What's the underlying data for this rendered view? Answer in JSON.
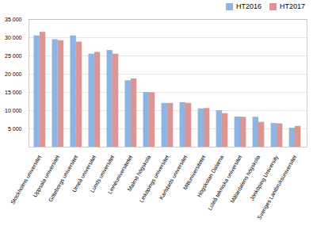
{
  "chart_data": {
    "type": "bar",
    "categories": [
      "Stockholms universitet",
      "Uppsala universitet",
      "Göteborgs universitet",
      "Umeå universitet",
      "Lunds universitet",
      "Linnéuniversitetet",
      "Malmö högskola",
      "Linköpings universitet",
      "Karlstads universitet",
      "Mittuniversitetet",
      "Högskolan Dalarna",
      "Luleå tekniska universitet",
      "Mälardalens högskola",
      "Jönköping University",
      "Sveriges Lantbruksuniversitet"
    ],
    "series": [
      {
        "name": "HT2016",
        "color": "#8EB4E3",
        "values": [
          30500,
          29500,
          30500,
          25500,
          26500,
          18200,
          15000,
          12000,
          12200,
          10500,
          10000,
          8300,
          8200,
          6500,
          5200
        ]
      },
      {
        "name": "HT2017",
        "color": "#DA9694",
        "values": [
          31500,
          29200,
          28800,
          26000,
          25500,
          18700,
          14900,
          12000,
          12000,
          10600,
          9200,
          8200,
          6800,
          6400,
          5700
        ]
      }
    ],
    "ylim": [
      0,
      35000
    ],
    "yticks": [
      {
        "value": 5000,
        "label": "5 000"
      },
      {
        "value": 10000,
        "label": "10 000"
      },
      {
        "value": 15000,
        "label": "15 000"
      },
      {
        "value": 20000,
        "label": "20 000"
      },
      {
        "value": 25000,
        "label": "25 000"
      },
      {
        "value": 30000,
        "label": "30 000"
      },
      {
        "value": 35000,
        "label": "35 000"
      }
    ],
    "grid": true,
    "legend": "upper right"
  }
}
